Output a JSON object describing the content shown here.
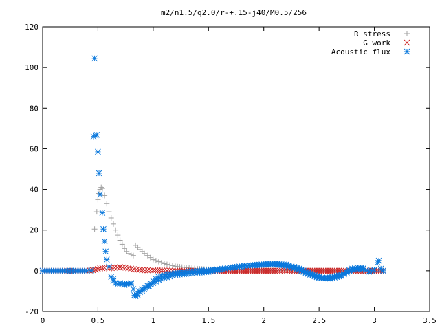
{
  "chart_data": {
    "type": "scatter",
    "title": "m2/n1.5/q2.0/r-+.15-j40/M0.5/256",
    "xlabel": "",
    "ylabel": "",
    "xlim": [
      0,
      3.5
    ],
    "ylim": [
      -20,
      120
    ],
    "xticks": [
      0,
      0.5,
      1,
      1.5,
      2,
      2.5,
      3,
      3.5
    ],
    "xtick_labels": [
      "0",
      "0.5",
      "1",
      "1.5",
      "2",
      "2.5",
      "3",
      "3.5"
    ],
    "yticks": [
      -20,
      0,
      20,
      40,
      60,
      80,
      100,
      120
    ],
    "ytick_labels": [
      "-20",
      "0",
      "20",
      "40",
      "60",
      "80",
      "100",
      "120"
    ],
    "grid": false,
    "legend_position": "top-right",
    "series": [
      {
        "name": "R stress",
        "marker": "+",
        "color": "#a0a0a0",
        "points": [
          [
            0.0,
            0
          ],
          [
            0.1,
            0
          ],
          [
            0.2,
            0
          ],
          [
            0.3,
            0
          ],
          [
            0.4,
            0
          ],
          [
            0.45,
            0.2
          ],
          [
            0.47,
            20.5
          ],
          [
            0.49,
            29
          ],
          [
            0.5,
            35
          ],
          [
            0.51,
            38
          ],
          [
            0.52,
            40
          ],
          [
            0.53,
            41
          ],
          [
            0.54,
            40.5
          ],
          [
            0.56,
            37
          ],
          [
            0.58,
            33
          ],
          [
            0.6,
            29
          ],
          [
            0.62,
            26
          ],
          [
            0.64,
            23
          ],
          [
            0.66,
            20
          ],
          [
            0.68,
            17.5
          ],
          [
            0.7,
            15
          ],
          [
            0.72,
            13
          ],
          [
            0.74,
            11
          ],
          [
            0.76,
            9.5
          ],
          [
            0.78,
            8.5
          ],
          [
            0.8,
            8
          ],
          [
            0.82,
            7.5
          ],
          [
            0.84,
            12.5
          ],
          [
            0.86,
            11.5
          ],
          [
            0.88,
            10.5
          ],
          [
            0.9,
            9.5
          ],
          [
            0.92,
            8.5
          ],
          [
            0.95,
            7.5
          ],
          [
            1.0,
            5.5
          ],
          [
            1.05,
            4.5
          ],
          [
            1.1,
            3.5
          ],
          [
            1.15,
            2.8
          ],
          [
            1.2,
            2.2
          ],
          [
            1.3,
            1.5
          ],
          [
            1.4,
            1.0
          ],
          [
            1.5,
            0.7
          ],
          [
            1.7,
            0.4
          ],
          [
            2.0,
            0.2
          ],
          [
            2.3,
            0.1
          ],
          [
            2.6,
            0.05
          ],
          [
            3.0,
            0
          ],
          [
            3.08,
            0
          ]
        ]
      },
      {
        "name": "G work",
        "marker": "x",
        "color": "#cc2020",
        "points": [
          [
            0.0,
            0
          ],
          [
            0.2,
            0
          ],
          [
            0.4,
            0
          ],
          [
            0.48,
            0.5
          ],
          [
            0.52,
            1.2
          ],
          [
            0.56,
            1.5
          ],
          [
            0.6,
            1.2
          ],
          [
            0.65,
            1.5
          ],
          [
            0.7,
            1.8
          ],
          [
            0.75,
            1.5
          ],
          [
            0.8,
            1.0
          ],
          [
            0.85,
            0.6
          ],
          [
            0.9,
            0.3
          ],
          [
            1.0,
            0.2
          ],
          [
            1.1,
            0.1
          ],
          [
            1.2,
            0
          ],
          [
            1.5,
            0
          ],
          [
            1.8,
            0
          ],
          [
            2.1,
            0
          ],
          [
            2.3,
            0
          ],
          [
            2.5,
            0
          ],
          [
            2.7,
            0
          ],
          [
            2.9,
            0
          ],
          [
            3.08,
            0
          ]
        ]
      },
      {
        "name": "Acoustic flux",
        "marker": "*",
        "color": "#0a78dc",
        "points": [
          [
            0.0,
            0
          ],
          [
            0.1,
            0
          ],
          [
            0.2,
            0
          ],
          [
            0.3,
            0
          ],
          [
            0.4,
            0
          ],
          [
            0.44,
            0.2
          ],
          [
            0.46,
            66
          ],
          [
            0.47,
            104.5
          ],
          [
            0.48,
            66.5
          ],
          [
            0.49,
            66.8
          ],
          [
            0.5,
            58.5
          ],
          [
            0.51,
            48
          ],
          [
            0.52,
            37.5
          ],
          [
            0.54,
            28.5
          ],
          [
            0.55,
            20.5
          ],
          [
            0.56,
            14.5
          ],
          [
            0.57,
            9.5
          ],
          [
            0.58,
            5.5
          ],
          [
            0.6,
            2
          ],
          [
            0.62,
            -3
          ],
          [
            0.64,
            -5
          ],
          [
            0.66,
            -6
          ],
          [
            0.68,
            -6.5
          ],
          [
            0.7,
            -6.5
          ],
          [
            0.72,
            -6.5
          ],
          [
            0.74,
            -6.3
          ],
          [
            0.76,
            -6.3
          ],
          [
            0.78,
            -6.3
          ],
          [
            0.8,
            -6.5
          ],
          [
            0.82,
            -9
          ],
          [
            0.83,
            -12
          ],
          [
            0.85,
            -11.5
          ],
          [
            0.87,
            -10
          ],
          [
            0.9,
            -9
          ],
          [
            0.95,
            -7.5
          ],
          [
            1.0,
            -6
          ],
          [
            1.05,
            -4.5
          ],
          [
            1.1,
            -3.5
          ],
          [
            1.2,
            -2
          ],
          [
            1.3,
            -1.5
          ],
          [
            1.4,
            -1
          ],
          [
            1.5,
            -0.5
          ],
          [
            1.6,
            0.5
          ],
          [
            1.7,
            1.5
          ],
          [
            1.8,
            2.2
          ],
          [
            1.9,
            2.8
          ],
          [
            2.0,
            3.2
          ],
          [
            2.1,
            3.4
          ],
          [
            2.2,
            3.0
          ],
          [
            2.3,
            1.5
          ],
          [
            2.4,
            -1
          ],
          [
            2.5,
            -3
          ],
          [
            2.55,
            -3.5
          ],
          [
            2.6,
            -3.3
          ],
          [
            2.7,
            -2
          ],
          [
            2.75,
            -0.5
          ],
          [
            2.8,
            1
          ],
          [
            2.85,
            1.5
          ],
          [
            2.9,
            1
          ],
          [
            2.95,
            -0.5
          ],
          [
            3.0,
            0.5
          ],
          [
            3.03,
            4
          ],
          [
            3.04,
            5
          ],
          [
            3.06,
            1
          ],
          [
            3.08,
            0
          ],
          [
            0.84,
            -12.5
          ],
          [
            0.86,
            -12
          ],
          [
            0.88,
            -10.5
          ],
          [
            0.92,
            -9
          ],
          [
            0.96,
            -7.5
          ],
          [
            1.0,
            -5
          ],
          [
            1.05,
            -3
          ],
          [
            1.1,
            -2
          ],
          [
            1.2,
            -1
          ],
          [
            1.3,
            -0.5
          ],
          [
            1.4,
            0
          ],
          [
            1.5,
            0.2
          ],
          [
            1.6,
            0.8
          ],
          [
            1.7,
            1.5
          ],
          [
            1.8,
            2.2
          ],
          [
            1.9,
            2.6
          ],
          [
            2.0,
            3.0
          ],
          [
            2.1,
            3.2
          ],
          [
            2.2,
            2.5
          ],
          [
            2.3,
            1.0
          ],
          [
            2.4,
            -1.5
          ],
          [
            2.5,
            -3.5
          ],
          [
            2.6,
            -3.8
          ],
          [
            2.7,
            -2.5
          ],
          [
            2.8,
            0.5
          ],
          [
            2.9,
            1.2
          ],
          [
            0.64,
            -4
          ],
          [
            0.66,
            -6
          ],
          [
            0.7,
            -6
          ],
          [
            0.74,
            -7
          ],
          [
            0.8,
            -6
          ]
        ]
      }
    ]
  }
}
